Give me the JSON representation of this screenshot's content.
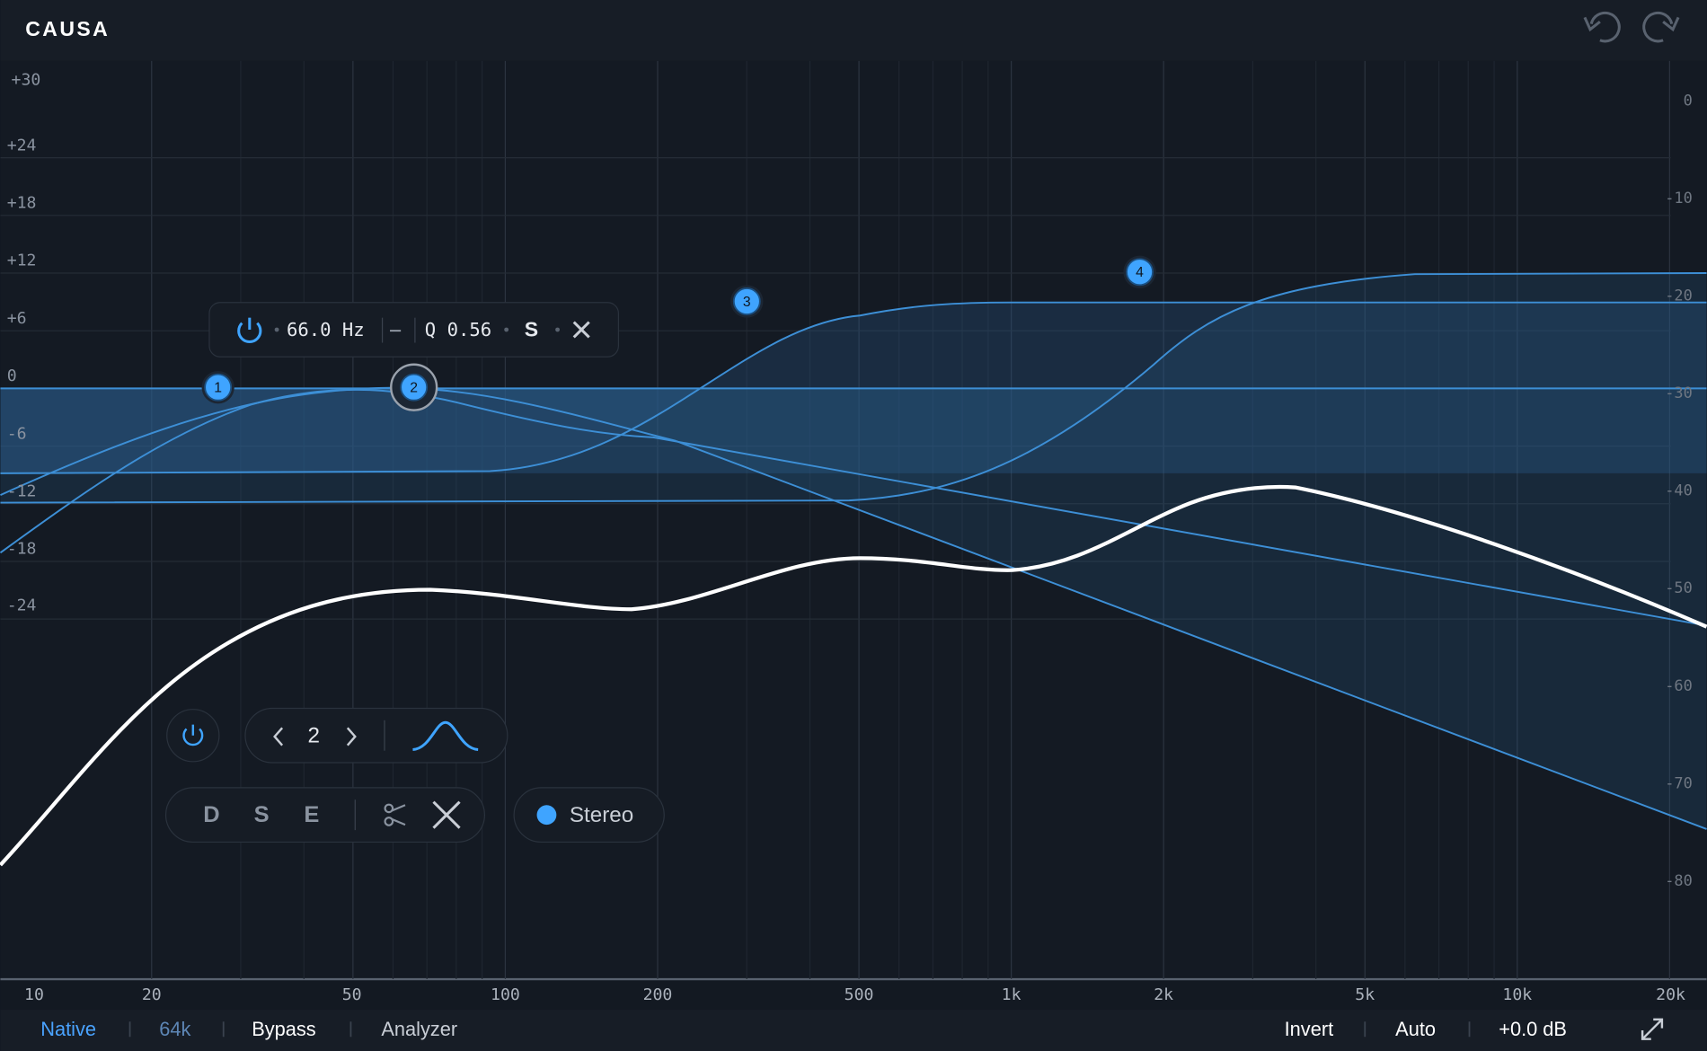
{
  "header": {
    "title": "CAUSA"
  },
  "graph": {
    "gain_labels": [
      "+30",
      "+24",
      "+18",
      "+12",
      "+6",
      "0",
      "-6",
      "-12",
      "-18",
      "-24"
    ],
    "level_labels": [
      "0",
      "-10",
      "-20",
      "-30",
      "-40",
      "-50",
      "-60",
      "-70",
      "-80"
    ],
    "freq_labels": [
      "10",
      "20",
      "50",
      "100",
      "200",
      "500",
      "1k",
      "2k",
      "5k",
      "10k",
      "20k"
    ],
    "nodes": [
      {
        "label": "1"
      },
      {
        "label": "2"
      },
      {
        "label": "3"
      },
      {
        "label": "4"
      }
    ]
  },
  "band_popup": {
    "frequency": "66.0 Hz",
    "q": "Q 0.56",
    "solo": "S"
  },
  "band_controls": {
    "band": "2",
    "modes": [
      "D",
      "S",
      "E"
    ],
    "channel": "Stereo"
  },
  "footer": {
    "left": [
      "Native",
      "64k",
      "Bypass",
      "Analyzer"
    ],
    "right": [
      "Invert",
      "Auto",
      "+0.0 dB"
    ]
  }
}
